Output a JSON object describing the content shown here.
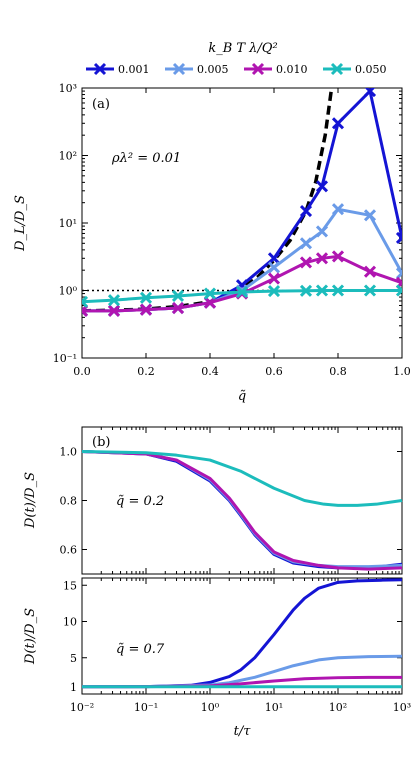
{
  "legend_title": "k_B T λ/Q²",
  "chart_data": [
    {
      "type": "line",
      "panel": "(a)",
      "annotation": "ρλ² = 0.01",
      "xlabel": "q̃",
      "ylabel": "D_L/D_S",
      "xlim": [
        0,
        1
      ],
      "ylim": [
        0.1,
        1000
      ],
      "yscale": "log",
      "xticks": [
        "0.0",
        "0.2",
        "0.4",
        "0.6",
        "0.8",
        "1.0"
      ],
      "yticks": [
        "10⁻¹",
        "10⁰",
        "10¹",
        "10²",
        "10³"
      ],
      "series": [
        {
          "name": "0.001",
          "color": "#1414d4",
          "marker": "x",
          "x": [
            0,
            0.1,
            0.2,
            0.3,
            0.4,
            0.5,
            0.6,
            0.7,
            0.75,
            0.8,
            0.9,
            1.0
          ],
          "y": [
            0.5,
            0.5,
            0.52,
            0.55,
            0.66,
            1.2,
            3.0,
            15,
            35,
            300,
            900,
            6
          ]
        },
        {
          "name": "0.005",
          "color": "#6a9be8",
          "marker": "x",
          "x": [
            0,
            0.1,
            0.2,
            0.3,
            0.4,
            0.5,
            0.6,
            0.7,
            0.75,
            0.8,
            0.9,
            1.0
          ],
          "y": [
            0.5,
            0.5,
            0.52,
            0.55,
            0.66,
            1.0,
            2.2,
            5,
            7.5,
            16,
            13,
            1.8
          ]
        },
        {
          "name": "0.010",
          "color": "#b015b0",
          "marker": "x",
          "x": [
            0,
            0.1,
            0.2,
            0.3,
            0.4,
            0.5,
            0.6,
            0.7,
            0.75,
            0.8,
            0.9,
            1.0
          ],
          "y": [
            0.5,
            0.5,
            0.52,
            0.55,
            0.66,
            0.9,
            1.5,
            2.6,
            3.0,
            3.2,
            1.9,
            1.3
          ]
        },
        {
          "name": "0.050",
          "color": "#1cbcbc",
          "marker": "x",
          "x": [
            0,
            0.1,
            0.2,
            0.3,
            0.4,
            0.5,
            0.6,
            0.7,
            0.75,
            0.8,
            0.9,
            1.0
          ],
          "y": [
            0.68,
            0.72,
            0.78,
            0.83,
            0.9,
            0.95,
            0.98,
            0.99,
            1.0,
            1.0,
            1.0,
            1.0
          ]
        }
      ],
      "reference_lines": [
        {
          "style": "dashed",
          "color": "#000000",
          "x": [
            0,
            0.1,
            0.2,
            0.3,
            0.4,
            0.45,
            0.5,
            0.55,
            0.6,
            0.65,
            0.7,
            0.73,
            0.76,
            0.78
          ],
          "y": [
            0.5,
            0.51,
            0.53,
            0.58,
            0.68,
            0.82,
            1.08,
            1.6,
            2.8,
            5.5,
            15,
            40,
            200,
            1000
          ]
        },
        {
          "style": "dotted",
          "color": "#000000",
          "x": [
            0,
            1
          ],
          "y": [
            1,
            1
          ]
        }
      ]
    },
    {
      "type": "line",
      "panel": "(b)",
      "annotation": "q̃ = 0.2",
      "xlabel": "",
      "ylabel": "D(t)/D_S",
      "xscale": "log",
      "xlim": [
        0.01,
        1000
      ],
      "ylim": [
        0.5,
        1.1
      ],
      "yticks": [
        "0.6",
        "0.8",
        "1.0"
      ],
      "series": [
        {
          "name": "0.001",
          "color": "#1414d4",
          "x": [
            0.01,
            0.1,
            0.3,
            1,
            2,
            3,
            5,
            10,
            20,
            50,
            100,
            300,
            1000
          ],
          "y": [
            1.0,
            0.99,
            0.96,
            0.88,
            0.8,
            0.74,
            0.66,
            0.58,
            0.545,
            0.53,
            0.525,
            0.525,
            0.54
          ]
        },
        {
          "name": "0.005",
          "color": "#6a9be8",
          "x": [
            0.01,
            0.1,
            0.3,
            1,
            2,
            3,
            5,
            10,
            20,
            50,
            100,
            300,
            1000
          ],
          "y": [
            1.0,
            0.99,
            0.965,
            0.885,
            0.805,
            0.745,
            0.665,
            0.585,
            0.55,
            0.535,
            0.53,
            0.53,
            0.535
          ]
        },
        {
          "name": "0.010",
          "color": "#b015b0",
          "x": [
            0.01,
            0.1,
            0.3,
            1,
            2,
            3,
            5,
            10,
            20,
            50,
            100,
            300,
            1000
          ],
          "y": [
            1.0,
            0.99,
            0.965,
            0.89,
            0.81,
            0.75,
            0.67,
            0.59,
            0.555,
            0.535,
            0.525,
            0.52,
            0.525
          ]
        },
        {
          "name": "0.050",
          "color": "#1cbcbc",
          "x": [
            0.01,
            0.1,
            0.3,
            1,
            3,
            10,
            30,
            60,
            100,
            200,
            400,
            1000
          ],
          "y": [
            1.0,
            0.995,
            0.985,
            0.965,
            0.92,
            0.85,
            0.8,
            0.785,
            0.78,
            0.78,
            0.785,
            0.8
          ]
        }
      ]
    },
    {
      "type": "line",
      "annotation": "q̃ = 0.7",
      "xlabel": "t/τ",
      "ylabel": "D(t)/D_S",
      "xscale": "log",
      "xlim": [
        0.01,
        1000
      ],
      "ylim": [
        0,
        16
      ],
      "xticks": [
        "10⁻²",
        "10⁻¹",
        "10⁰",
        "10¹",
        "10²",
        "10³"
      ],
      "yticks": [
        "1",
        "5",
        "10",
        "15"
      ],
      "series": [
        {
          "name": "0.001",
          "color": "#1414d4",
          "x": [
            0.01,
            0.1,
            0.5,
            1,
            2,
            3,
            5,
            10,
            20,
            30,
            50,
            100,
            200,
            500,
            1000
          ],
          "y": [
            1.0,
            1.02,
            1.2,
            1.6,
            2.4,
            3.3,
            5.0,
            8.2,
            11.6,
            13.2,
            14.6,
            15.4,
            15.6,
            15.7,
            15.75
          ]
        },
        {
          "name": "0.005",
          "color": "#6a9be8",
          "x": [
            0.01,
            0.1,
            1,
            2,
            5,
            10,
            20,
            50,
            100,
            300,
            1000
          ],
          "y": [
            1.0,
            1.01,
            1.25,
            1.55,
            2.3,
            3.1,
            3.9,
            4.7,
            5.0,
            5.15,
            5.2
          ]
        },
        {
          "name": "0.010",
          "color": "#b015b0",
          "x": [
            0.01,
            0.1,
            1,
            3,
            10,
            30,
            100,
            300,
            1000
          ],
          "y": [
            1.0,
            1.01,
            1.12,
            1.4,
            1.8,
            2.1,
            2.25,
            2.3,
            2.3
          ]
        },
        {
          "name": "0.050",
          "color": "#1cbcbc",
          "x": [
            0.01,
            1,
            10,
            100,
            1000
          ],
          "y": [
            1.0,
            1.0,
            1.0,
            1.0,
            1.0
          ]
        }
      ]
    }
  ]
}
